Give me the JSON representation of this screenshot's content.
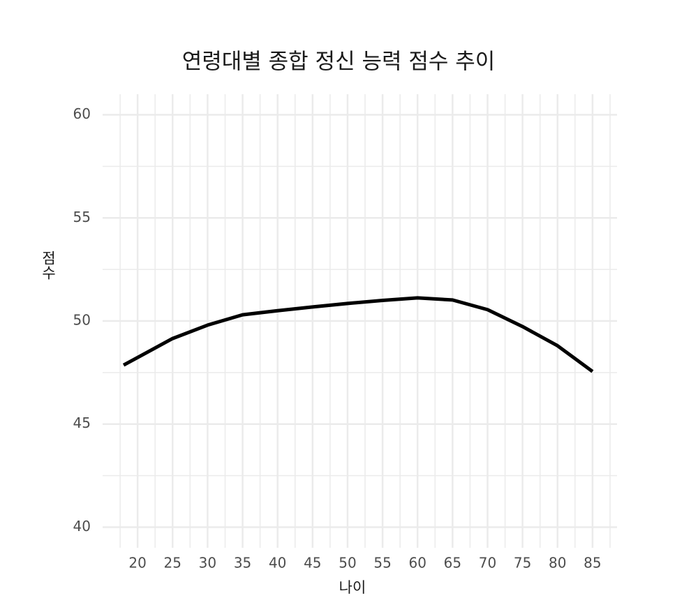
{
  "chart_data": {
    "type": "line",
    "title": "연령대별 종합 정신 능력 점수 추이",
    "x_label": "나이",
    "y_label": "점수",
    "x": [
      18,
      25,
      30,
      35,
      40,
      45,
      50,
      55,
      60,
      65,
      70,
      75,
      80,
      85
    ],
    "series": [
      {
        "color": "#000000",
        "values": [
          47.86,
          49.15,
          49.8,
          50.3,
          50.5,
          50.68,
          50.85,
          51.0,
          51.12,
          51.02,
          50.55,
          49.73,
          48.8,
          47.55
        ]
      }
    ],
    "xlim": [
      15,
      88.5
    ],
    "ylim": [
      39,
      61
    ],
    "xticks": [
      20,
      25,
      30,
      35,
      40,
      45,
      50,
      55,
      60,
      65,
      70,
      75,
      80,
      85
    ],
    "yticks": [
      40,
      45,
      50,
      55,
      60
    ],
    "x_minor_ticks": [
      17.5,
      22.5,
      27.5,
      32.5,
      37.5,
      42.5,
      47.5,
      52.5,
      57.5,
      62.5,
      67.5,
      72.5,
      77.5,
      82.5,
      87.5
    ],
    "y_minor_ticks": [
      42.5,
      47.5,
      52.5,
      57.5
    ],
    "grid": true
  }
}
